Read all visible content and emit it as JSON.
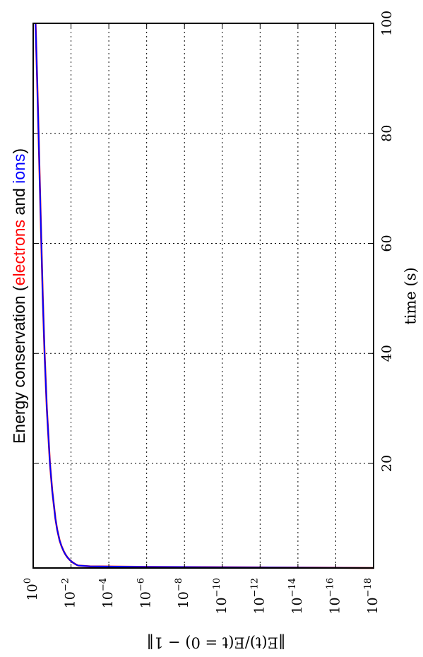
{
  "chart_data": {
    "type": "line",
    "orientation": "rotated-90-ccw",
    "title": {
      "prefix": "Energy conservation (",
      "electrons": "electrons",
      "and": " and ",
      "ions": "ions",
      "suffix": ")"
    },
    "title_colors": {
      "electrons": "#ff0000",
      "ions": "#0000ff",
      "text": "#000000"
    },
    "xlabel": "time (s)",
    "ylabel": "‖E(t)/E(t = 0) − 1‖",
    "xlim": [
      1,
      100
    ],
    "xticks": [
      20,
      40,
      60,
      80,
      100
    ],
    "xtick_labels": [
      "20",
      "40",
      "60",
      "80",
      "100"
    ],
    "yscale": "log",
    "ylim": [
      1e-18,
      1
    ],
    "yticks": [
      {
        "base": "10",
        "exp": "0",
        "value": 1
      },
      {
        "base": "10",
        "exp": "−2",
        "value": 0.01
      },
      {
        "base": "10",
        "exp": "−4",
        "value": 0.0001
      },
      {
        "base": "10",
        "exp": "−6",
        "value": 1e-06
      },
      {
        "base": "10",
        "exp": "−8",
        "value": 1e-08
      },
      {
        "base": "10",
        "exp": "−10",
        "value": 1e-10
      },
      {
        "base": "10",
        "exp": "−12",
        "value": 1e-12
      },
      {
        "base": "10",
        "exp": "−14",
        "value": 1e-14
      },
      {
        "base": "10",
        "exp": "−16",
        "value": 1e-16
      },
      {
        "base": "10",
        "exp": "−18",
        "value": 1e-18
      }
    ],
    "grid": true,
    "series": [
      {
        "color": "#ff0000",
        "x": [
          1.0,
          1.05,
          1.1,
          1.15,
          1.2,
          1.3,
          1.45,
          1.6,
          1.8,
          2.0,
          2.5,
          3.0,
          3.5,
          4.0,
          5.0,
          6.0,
          8.0,
          10.0,
          15.0,
          20.0,
          30.0,
          40.0,
          50.0,
          60.0,
          70.0,
          80.0,
          90.0,
          100.0
        ],
        "y": [
          1e-18,
          1e-15,
          1e-12,
          1e-09,
          1e-06,
          0.001,
          0.0042,
          0.0052,
          0.0066,
          0.0081,
          0.012,
          0.016,
          0.02,
          0.024,
          0.032,
          0.04,
          0.054,
          0.067,
          0.098,
          0.13,
          0.19,
          0.25,
          0.31,
          0.37,
          0.44,
          0.52,
          0.62,
          0.75
        ]
      },
      {
        "color": "#0000ff",
        "x": [
          1.0,
          1.05,
          1.1,
          1.15,
          1.2,
          1.3,
          1.45,
          1.6,
          1.8,
          2.0,
          2.5,
          3.0,
          3.5,
          4.0,
          5.0,
          6.0,
          8.0,
          10.0,
          15.0,
          20.0,
          30.0,
          40.0,
          50.0,
          60.0,
          70.0,
          80.0,
          90.0,
          100.0
        ],
        "y": [
          1e-18,
          1e-15,
          1e-12,
          1e-09,
          1e-06,
          0.001,
          0.0042,
          0.0052,
          0.0066,
          0.0081,
          0.012,
          0.016,
          0.02,
          0.024,
          0.032,
          0.04,
          0.054,
          0.067,
          0.098,
          0.13,
          0.19,
          0.25,
          0.31,
          0.37,
          0.44,
          0.52,
          0.62,
          0.75
        ]
      }
    ]
  }
}
